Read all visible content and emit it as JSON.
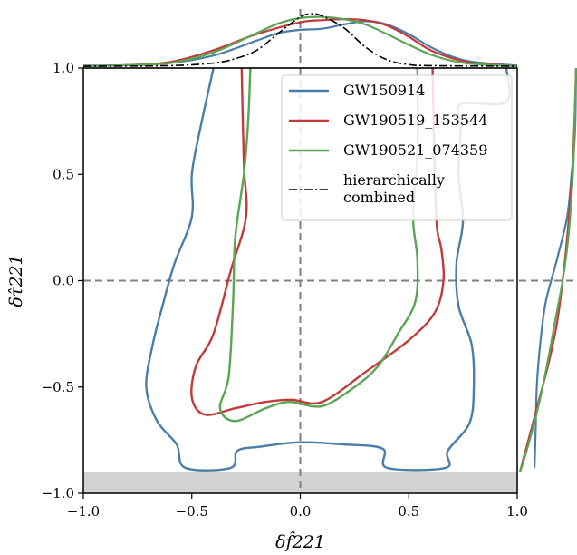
{
  "chart_data": {
    "type": "line",
    "xlabel": "δf̂221",
    "ylabel": "δτ̂221",
    "xlim": [
      -1.0,
      1.0
    ],
    "ylim": [
      -1.0,
      1.0
    ],
    "x_ticks": [
      "−1.0",
      "−0.5",
      "0.0",
      "0.5",
      "1.0"
    ],
    "y_ticks": [
      "−1.0",
      "−0.5",
      "0.0",
      "0.5",
      "1.0"
    ],
    "x_tick_values": [
      -1.0,
      -0.5,
      0.0,
      0.5,
      1.0
    ],
    "y_tick_values": [
      -1.0,
      -0.5,
      0.0,
      0.5,
      1.0
    ],
    "excluded_region": {
      "y_from": -1.0,
      "y_to": -0.9,
      "color": "#d3d3d3"
    },
    "reference_lines": {
      "x": 0.0,
      "y": 0.0,
      "style": "dashed",
      "color": "#808080"
    },
    "legend": {
      "position": "top-right"
    },
    "series": [
      {
        "name": "GW150914",
        "color": "#4a7ea8",
        "contour": [
          [
            -0.4,
            1.0
          ],
          [
            -0.46,
            0.72
          ],
          [
            -0.5,
            0.5
          ],
          [
            -0.5,
            0.3
          ],
          [
            -0.58,
            0.08
          ],
          [
            -0.63,
            -0.1
          ],
          [
            -0.68,
            -0.3
          ],
          [
            -0.71,
            -0.5
          ],
          [
            -0.66,
            -0.66
          ],
          [
            -0.57,
            -0.77
          ],
          [
            -0.53,
            -0.88
          ],
          [
            -0.32,
            -0.88
          ],
          [
            -0.29,
            -0.8
          ],
          [
            -0.18,
            -0.78
          ],
          [
            0.0,
            -0.76
          ],
          [
            0.2,
            -0.77
          ],
          [
            0.38,
            -0.79
          ],
          [
            0.4,
            -0.88
          ],
          [
            0.67,
            -0.88
          ],
          [
            0.68,
            -0.8
          ],
          [
            0.78,
            -0.67
          ],
          [
            0.8,
            -0.5
          ],
          [
            0.79,
            -0.3
          ],
          [
            0.73,
            -0.12
          ],
          [
            0.72,
            0.08
          ],
          [
            0.75,
            0.28
          ],
          [
            0.73,
            0.5
          ],
          [
            0.74,
            0.72
          ],
          [
            0.74,
            0.83
          ],
          [
            0.95,
            0.84
          ],
          [
            0.95,
            1.0
          ]
        ],
        "x_marginal": [
          [
            -1.0,
            0.01
          ],
          [
            -0.8,
            0.02
          ],
          [
            -0.6,
            0.06
          ],
          [
            -0.4,
            0.2
          ],
          [
            -0.2,
            0.48
          ],
          [
            -0.1,
            0.62
          ],
          [
            0.0,
            0.68
          ],
          [
            0.1,
            0.7
          ],
          [
            0.2,
            0.78
          ],
          [
            0.3,
            0.84
          ],
          [
            0.4,
            0.78
          ],
          [
            0.5,
            0.6
          ],
          [
            0.6,
            0.36
          ],
          [
            0.7,
            0.18
          ],
          [
            0.8,
            0.08
          ],
          [
            1.0,
            0.01
          ]
        ],
        "y_marginal": [
          [
            -0.88,
            0.26
          ],
          [
            -0.7,
            0.28
          ],
          [
            -0.5,
            0.3
          ],
          [
            -0.3,
            0.36
          ],
          [
            -0.1,
            0.46
          ],
          [
            0.1,
            0.66
          ],
          [
            0.3,
            0.84
          ],
          [
            0.5,
            0.92
          ],
          [
            0.7,
            0.98
          ],
          [
            1.0,
            1.0
          ]
        ]
      },
      {
        "name": "GW190519_153544",
        "color": "#c23a3a",
        "contour": [
          [
            -0.27,
            1.0
          ],
          [
            -0.26,
            0.55
          ],
          [
            -0.25,
            0.3
          ],
          [
            -0.32,
            0.05
          ],
          [
            -0.4,
            -0.25
          ],
          [
            -0.48,
            -0.4
          ],
          [
            -0.5,
            -0.55
          ],
          [
            -0.44,
            -0.63
          ],
          [
            -0.3,
            -0.6
          ],
          [
            -0.16,
            -0.57
          ],
          [
            -0.04,
            -0.56
          ],
          [
            0.1,
            -0.57
          ],
          [
            0.3,
            -0.43
          ],
          [
            0.5,
            -0.28
          ],
          [
            0.62,
            -0.15
          ],
          [
            0.66,
            0.0
          ],
          [
            0.65,
            0.15
          ],
          [
            0.63,
            0.25
          ],
          [
            0.62,
            0.5
          ],
          [
            0.61,
            1.0
          ]
        ],
        "x_marginal": [
          [
            -1.0,
            0.0
          ],
          [
            -0.8,
            0.02
          ],
          [
            -0.6,
            0.08
          ],
          [
            -0.4,
            0.3
          ],
          [
            -0.2,
            0.6
          ],
          [
            0.0,
            0.82
          ],
          [
            0.1,
            0.86
          ],
          [
            0.2,
            0.88
          ],
          [
            0.3,
            0.86
          ],
          [
            0.4,
            0.76
          ],
          [
            0.5,
            0.55
          ],
          [
            0.6,
            0.3
          ],
          [
            0.7,
            0.15
          ],
          [
            0.8,
            0.06
          ],
          [
            1.0,
            0.0
          ]
        ],
        "y_marginal": [
          [
            -0.9,
            0.0
          ],
          [
            -0.8,
            0.1
          ],
          [
            -0.6,
            0.3
          ],
          [
            -0.4,
            0.5
          ],
          [
            -0.2,
            0.66
          ],
          [
            0.0,
            0.76
          ],
          [
            0.2,
            0.84
          ],
          [
            0.4,
            0.9
          ],
          [
            0.6,
            0.95
          ],
          [
            1.0,
            1.0
          ]
        ]
      },
      {
        "name": "GW190521_074359",
        "color": "#5aa655",
        "contour": [
          [
            -0.23,
            1.0
          ],
          [
            -0.24,
            0.75
          ],
          [
            -0.26,
            0.5
          ],
          [
            -0.3,
            0.2
          ],
          [
            -0.31,
            -0.1
          ],
          [
            -0.33,
            -0.45
          ],
          [
            -0.37,
            -0.6
          ],
          [
            -0.3,
            -0.66
          ],
          [
            -0.16,
            -0.6
          ],
          [
            -0.05,
            -0.57
          ],
          [
            0.1,
            -0.59
          ],
          [
            0.25,
            -0.5
          ],
          [
            0.36,
            -0.4
          ],
          [
            0.45,
            -0.25
          ],
          [
            0.53,
            -0.1
          ],
          [
            0.54,
            0.1
          ],
          [
            0.52,
            0.3
          ],
          [
            0.54,
            0.6
          ],
          [
            0.54,
            1.0
          ]
        ],
        "x_marginal": [
          [
            -1.0,
            0.0
          ],
          [
            -0.8,
            0.02
          ],
          [
            -0.6,
            0.06
          ],
          [
            -0.4,
            0.26
          ],
          [
            -0.2,
            0.62
          ],
          [
            -0.1,
            0.8
          ],
          [
            0.0,
            0.9
          ],
          [
            0.1,
            0.92
          ],
          [
            0.2,
            0.88
          ],
          [
            0.3,
            0.78
          ],
          [
            0.4,
            0.6
          ],
          [
            0.5,
            0.4
          ],
          [
            0.6,
            0.22
          ],
          [
            0.7,
            0.1
          ],
          [
            0.8,
            0.04
          ],
          [
            1.0,
            0.0
          ]
        ],
        "y_marginal": [
          [
            -0.9,
            0.0
          ],
          [
            -0.8,
            0.12
          ],
          [
            -0.6,
            0.32
          ],
          [
            -0.4,
            0.48
          ],
          [
            -0.2,
            0.62
          ],
          [
            0.0,
            0.76
          ],
          [
            0.2,
            0.86
          ],
          [
            0.4,
            0.92
          ],
          [
            0.6,
            0.96
          ],
          [
            1.0,
            1.0
          ]
        ]
      },
      {
        "name": "hierarchically combined",
        "color": "#000000",
        "style": "dash-dot",
        "x_marginal": [
          [
            -1.0,
            0.0
          ],
          [
            -0.6,
            0.01
          ],
          [
            -0.4,
            0.06
          ],
          [
            -0.3,
            0.14
          ],
          [
            -0.2,
            0.3
          ],
          [
            -0.1,
            0.62
          ],
          [
            0.0,
            0.92
          ],
          [
            0.05,
            0.98
          ],
          [
            0.1,
            0.94
          ],
          [
            0.2,
            0.72
          ],
          [
            0.3,
            0.36
          ],
          [
            0.4,
            0.12
          ],
          [
            0.5,
            0.03
          ],
          [
            0.6,
            0.01
          ],
          [
            1.0,
            0.0
          ]
        ]
      }
    ]
  },
  "legend_entries": [
    {
      "label": "GW150914",
      "color": "#4a7ea8",
      "style": "solid"
    },
    {
      "label": "GW190519_153544",
      "color": "#c23a3a",
      "style": "solid"
    },
    {
      "label": "GW190521_074359",
      "color": "#5aa655",
      "style": "solid"
    },
    {
      "label_lines": [
        "hierarchically",
        "combined"
      ],
      "color": "#000000",
      "style": "dash-dot"
    }
  ]
}
